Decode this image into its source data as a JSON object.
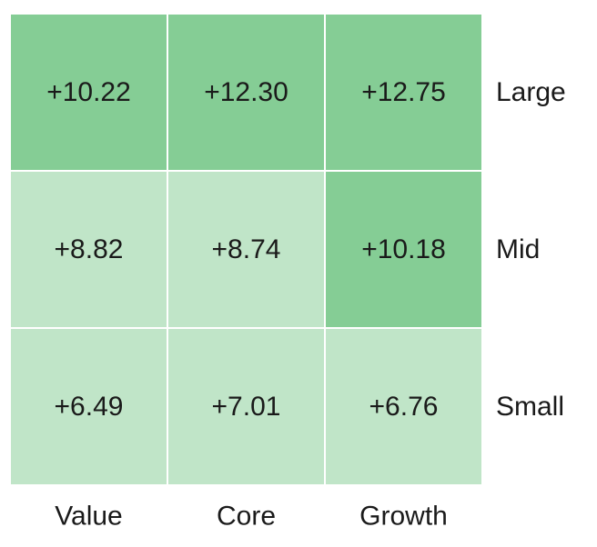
{
  "chart_data": {
    "type": "heatmap",
    "columns": [
      "Value",
      "Core",
      "Growth"
    ],
    "rows": [
      "Large",
      "Mid",
      "Small"
    ],
    "values": [
      [
        10.22,
        12.3,
        12.75
      ],
      [
        8.82,
        8.74,
        10.18
      ],
      [
        6.49,
        7.01,
        6.76
      ]
    ],
    "cell_labels": [
      [
        "+10.22",
        "+12.30",
        "+12.75"
      ],
      [
        "+8.82",
        "+8.74",
        "+10.18"
      ],
      [
        "+6.49",
        "+7.01",
        "+6.76"
      ]
    ],
    "colors": {
      "high": "#85cd95",
      "low": "#c0e5c8",
      "grid": "#ffffff",
      "text": "#1a1a1a"
    },
    "color_threshold": 10
  }
}
